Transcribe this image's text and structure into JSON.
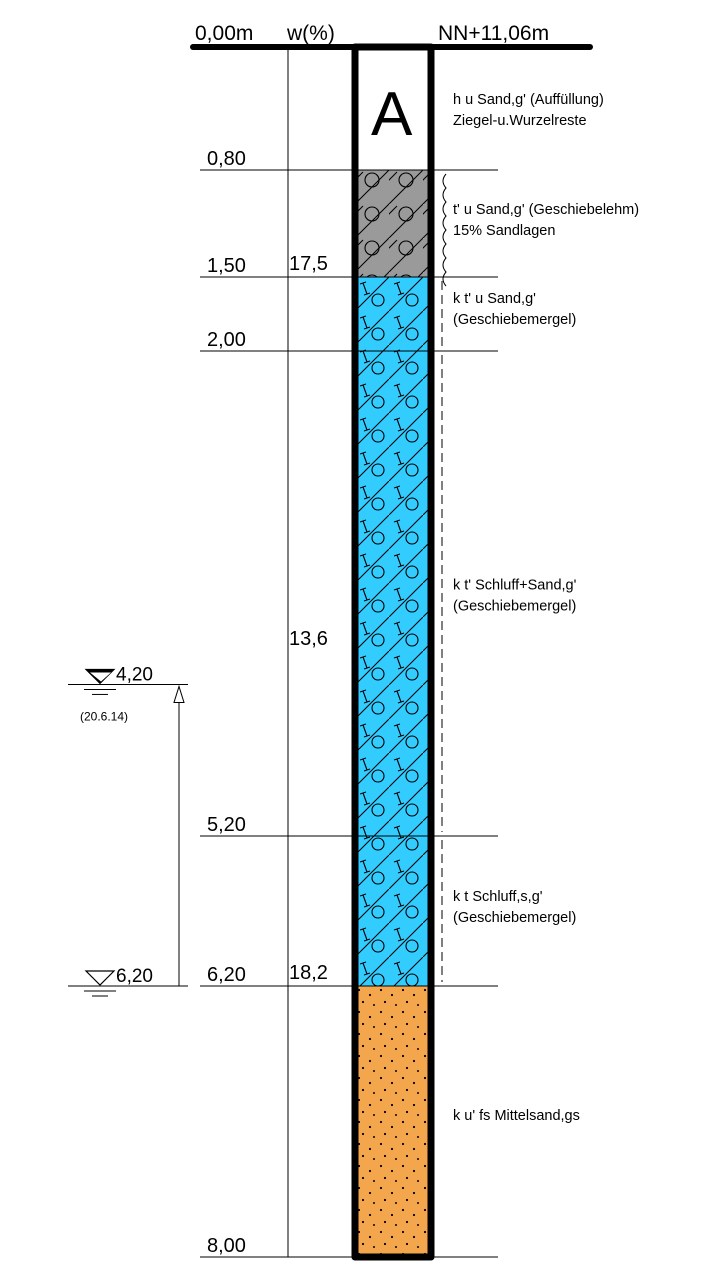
{
  "header": {
    "depth_start": "0,00m",
    "moisture_header": "w(%)",
    "elevation": "NN+11,06m"
  },
  "column_label": "A",
  "layers": [
    {
      "depth_top": 0.0,
      "depth_bottom": 0.8,
      "pattern": "fill",
      "color": "#ffffff",
      "description_lines": [
        "h u Sand,g' (Auffüllung)",
        "Ziegel-u.Wurzelreste"
      ],
      "consistency": "none"
    },
    {
      "depth_top": 0.8,
      "depth_bottom": 1.5,
      "pattern": "till",
      "color": "#9a9a9a",
      "description_lines": [
        "t' u Sand,g' (Geschiebelehm)",
        "15% Sandlagen"
      ],
      "consistency": "wavy"
    },
    {
      "depth_top": 1.5,
      "depth_bottom": 2.0,
      "pattern": "marl",
      "color": "#33ccff",
      "description_lines": [
        "k t' u Sand,g'",
        "(Geschiebemergel)"
      ],
      "consistency": "dashed"
    },
    {
      "depth_top": 2.0,
      "depth_bottom": 5.2,
      "pattern": "marl",
      "color": "#33ccff",
      "description_lines": [
        "k t' Schluff+Sand,g'",
        "(Geschiebemergel)"
      ],
      "consistency": "dashed"
    },
    {
      "depth_top": 5.2,
      "depth_bottom": 6.2,
      "pattern": "marl",
      "color": "#33ccff",
      "description_lines": [
        "k t Schluff,s,g'",
        "(Geschiebemergel)"
      ],
      "consistency": "dashed"
    },
    {
      "depth_top": 6.2,
      "depth_bottom": 8.0,
      "pattern": "sand",
      "color": "#f4a64c",
      "description_lines": [
        "k u' fs Mittelsand,gs"
      ],
      "consistency": "none"
    }
  ],
  "depth_labels": [
    {
      "depth": 0.8,
      "label": "0,80"
    },
    {
      "depth": 1.5,
      "label": "1,50"
    },
    {
      "depth": 2.0,
      "label": "2,00"
    },
    {
      "depth": 5.2,
      "label": "5,20"
    },
    {
      "depth": 6.2,
      "label": "6,20"
    },
    {
      "depth": 8.0,
      "label": "8,00"
    }
  ],
  "moisture_values": [
    {
      "depth": 1.5,
      "label": "17,5"
    },
    {
      "depth": 3.9,
      "label": "13,6"
    },
    {
      "depth": 6.2,
      "label": "18,2"
    }
  ],
  "water_levels": [
    {
      "depth": 4.2,
      "label": "4,20",
      "date": "(20.6.14)",
      "kind": "rest"
    },
    {
      "depth": 6.2,
      "label": "6,20",
      "date": "",
      "kind": "encountered"
    }
  ],
  "colors": {
    "line": "#000000",
    "fill_layer": "#ffffff",
    "till": "#9a9a9a",
    "marl": "#33ccff",
    "sand": "#f4a64c"
  }
}
